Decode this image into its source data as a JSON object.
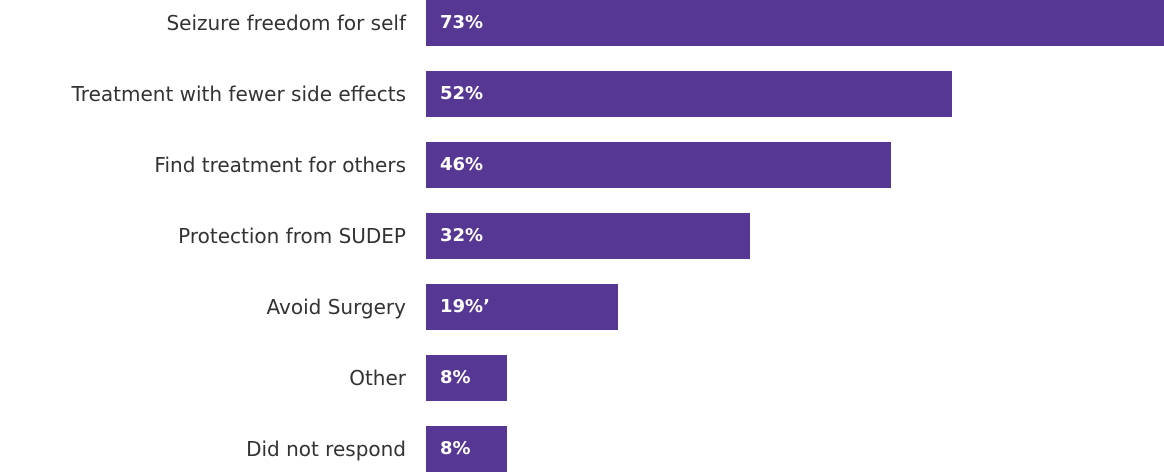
{
  "chart_data": {
    "type": "bar",
    "orientation": "horizontal",
    "categories": [
      "Seizure freedom for self",
      "Treatment with fewer side effects",
      "Find treatment for others",
      "Protection from SUDEP",
      "Avoid Surgery",
      "Other",
      "Did not respond"
    ],
    "values": [
      73,
      52,
      46,
      32,
      19,
      8,
      8
    ],
    "value_labels": [
      "73%",
      "52%",
      "46%",
      "32%",
      "19%’",
      "8%",
      "8%"
    ],
    "unit": "%",
    "xlim": [
      0,
      73
    ],
    "bar_color": "#563793",
    "value_label_color": "#ffffff",
    "category_label_color": "#333333",
    "grid": false,
    "legend": "none"
  }
}
